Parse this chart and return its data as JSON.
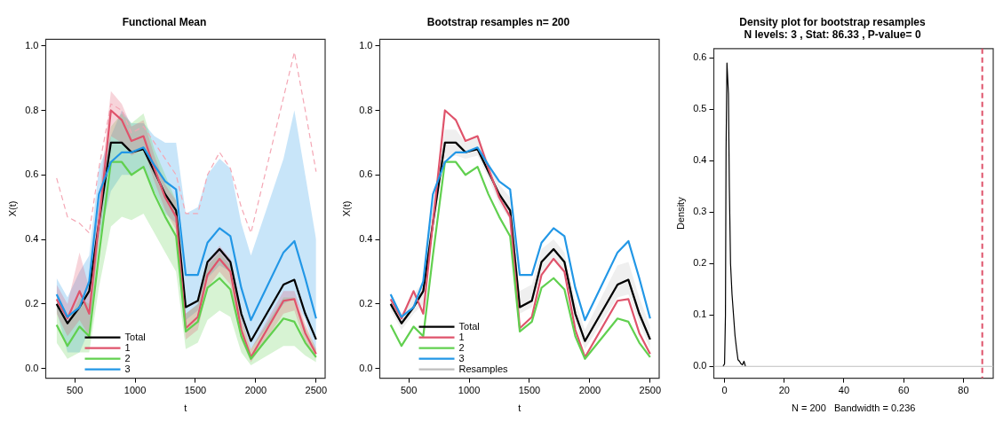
{
  "chart_data": [
    {
      "type": "line",
      "title": "Functional Mean",
      "xlabel": "t",
      "ylabel": "X(t)",
      "x": [
        350,
        440,
        540,
        620,
        700,
        800,
        890,
        970,
        1070,
        1160,
        1250,
        1340,
        1420,
        1520,
        1600,
        1700,
        1790,
        1880,
        1960,
        2230,
        2320,
        2410,
        2500
      ],
      "xlim": [
        260,
        2575
      ],
      "xticks": [
        500,
        1000,
        1500,
        2000,
        2500
      ],
      "ylim": [
        -0.03,
        1.02
      ],
      "yticks": [
        {
          "value": 0,
          "label": "0.0"
        },
        {
          "value": 0.2,
          "label": "0.2"
        },
        {
          "value": 0.4,
          "label": "0.4"
        },
        {
          "value": 0.6,
          "label": "0.6"
        },
        {
          "value": 0.8,
          "label": "0.8"
        },
        {
          "value": 1,
          "label": "1.0"
        }
      ],
      "grid": false,
      "legend": "bottom",
      "marker": "none",
      "line_style": "solid",
      "series": [
        {
          "color": "#f4a6b4",
          "line_style": "dashed",
          "values": [
            0.59,
            0.47,
            0.45,
            0.42,
            0.62,
            0.82,
            0.8,
            0.73,
            0.75,
            0.7,
            0.65,
            0.6,
            0.48,
            0.48,
            0.6,
            0.67,
            0.62,
            0.5,
            0.42,
            0.84,
            0.98,
            0.8,
            0.61
          ]
        },
        {
          "name": "Total",
          "color": "#000000",
          "values": [
            0.2,
            0.14,
            0.19,
            0.24,
            0.45,
            0.7,
            0.7,
            0.67,
            0.68,
            0.61,
            0.54,
            0.49,
            0.19,
            0.21,
            0.33,
            0.37,
            0.33,
            0.17,
            0.085,
            0.26,
            0.275,
            0.17,
            0.09
          ]
        },
        {
          "name": "1",
          "color": "#df536b",
          "values": [
            0.215,
            0.155,
            0.24,
            0.17,
            0.45,
            0.8,
            0.77,
            0.705,
            0.72,
            0.62,
            0.53,
            0.47,
            0.125,
            0.16,
            0.29,
            0.34,
            0.3,
            0.12,
            0.035,
            0.21,
            0.215,
            0.11,
            0.045
          ],
          "lower": [
            0.17,
            0.1,
            0.15,
            0.1,
            0.4,
            0.72,
            0.7,
            0.66,
            0.68,
            0.58,
            0.49,
            0.43,
            0.09,
            0.12,
            0.25,
            0.3,
            0.26,
            0.09,
            0.02,
            0.17,
            0.18,
            0.08,
            0.03
          ],
          "upper": [
            0.26,
            0.2,
            0.36,
            0.25,
            0.52,
            0.86,
            0.82,
            0.75,
            0.77,
            0.66,
            0.57,
            0.52,
            0.17,
            0.2,
            0.33,
            0.38,
            0.34,
            0.16,
            0.06,
            0.24,
            0.24,
            0.14,
            0.06
          ]
        },
        {
          "name": "2",
          "color": "#61d04f",
          "values": [
            0.135,
            0.07,
            0.13,
            0.1,
            0.35,
            0.64,
            0.64,
            0.6,
            0.625,
            0.54,
            0.47,
            0.41,
            0.115,
            0.145,
            0.25,
            0.28,
            0.245,
            0.1,
            0.03,
            0.155,
            0.145,
            0.08,
            0.035
          ],
          "lower": [
            0.08,
            0.03,
            0.05,
            0.05,
            0.25,
            0.44,
            0.47,
            0.46,
            0.48,
            0.42,
            0.36,
            0.3,
            0.06,
            0.08,
            0.15,
            0.18,
            0.16,
            0.05,
            0.01,
            0.07,
            0.07,
            0.04,
            0.02
          ],
          "upper": [
            0.2,
            0.14,
            0.22,
            0.2,
            0.45,
            0.75,
            0.79,
            0.76,
            0.79,
            0.68,
            0.6,
            0.52,
            0.17,
            0.2,
            0.32,
            0.36,
            0.32,
            0.15,
            0.06,
            0.22,
            0.22,
            0.13,
            0.06
          ]
        },
        {
          "name": "3",
          "color": "#2297e6",
          "values": [
            0.23,
            0.16,
            0.19,
            0.27,
            0.54,
            0.64,
            0.67,
            0.67,
            0.685,
            0.63,
            0.58,
            0.555,
            0.29,
            0.29,
            0.39,
            0.435,
            0.41,
            0.25,
            0.15,
            0.36,
            0.395,
            0.28,
            0.155
          ],
          "lower": [
            0.18,
            0.05,
            0.05,
            0.12,
            0.4,
            0.55,
            0.6,
            0.6,
            0.62,
            0.55,
            0.48,
            0.45,
            0.15,
            0.18,
            0.28,
            0.32,
            0.3,
            0.15,
            0.06,
            0.2,
            0.22,
            0.15,
            0.05
          ],
          "upper": [
            0.28,
            0.22,
            0.3,
            0.35,
            0.62,
            0.72,
            0.8,
            0.76,
            0.76,
            0.72,
            0.7,
            0.7,
            0.48,
            0.5,
            0.6,
            0.65,
            0.62,
            0.45,
            0.35,
            0.65,
            0.8,
            0.6,
            0.4
          ]
        }
      ]
    },
    {
      "type": "line",
      "title": "Bootstrap resamples n= 200",
      "xlabel": "t",
      "ylabel": "X(t)",
      "x": [
        350,
        440,
        540,
        620,
        700,
        800,
        890,
        970,
        1070,
        1160,
        1250,
        1340,
        1420,
        1520,
        1600,
        1700,
        1790,
        1880,
        1960,
        2230,
        2320,
        2410,
        2500
      ],
      "xlim": [
        260,
        2575
      ],
      "xticks": [
        500,
        1000,
        1500,
        2000,
        2500
      ],
      "ylim": [
        -0.03,
        1.02
      ],
      "yticks": [
        {
          "value": 0,
          "label": "0.0"
        },
        {
          "value": 0.2,
          "label": "0.2"
        },
        {
          "value": 0.4,
          "label": "0.4"
        },
        {
          "value": 0.6,
          "label": "0.6"
        },
        {
          "value": 0.8,
          "label": "0.8"
        },
        {
          "value": 1,
          "label": "1.0"
        }
      ],
      "grid": false,
      "legend": "bottom",
      "marker": "none",
      "line_style": "solid",
      "series": [
        {
          "name": "Resamples",
          "color": "#bebebe",
          "values": [
            0.2,
            0.14,
            0.19,
            0.24,
            0.45,
            0.7,
            0.7,
            0.67,
            0.68,
            0.61,
            0.54,
            0.49,
            0.19,
            0.21,
            0.33,
            0.37,
            0.33,
            0.17,
            0.085,
            0.26,
            0.275,
            0.17,
            0.09
          ],
          "lower": [
            0.18,
            0.12,
            0.17,
            0.2,
            0.42,
            0.65,
            0.66,
            0.65,
            0.66,
            0.59,
            0.51,
            0.46,
            0.17,
            0.19,
            0.3,
            0.34,
            0.3,
            0.14,
            0.06,
            0.22,
            0.23,
            0.14,
            0.06
          ],
          "upper": [
            0.22,
            0.17,
            0.23,
            0.27,
            0.5,
            0.74,
            0.74,
            0.7,
            0.72,
            0.64,
            0.57,
            0.53,
            0.24,
            0.26,
            0.37,
            0.4,
            0.36,
            0.21,
            0.12,
            0.32,
            0.33,
            0.22,
            0.13
          ]
        },
        {
          "name": "Total",
          "color": "#000000",
          "values": [
            0.2,
            0.14,
            0.19,
            0.24,
            0.45,
            0.7,
            0.7,
            0.67,
            0.68,
            0.61,
            0.54,
            0.49,
            0.19,
            0.21,
            0.33,
            0.37,
            0.33,
            0.17,
            0.085,
            0.26,
            0.275,
            0.17,
            0.09
          ]
        },
        {
          "name": "1",
          "color": "#df536b",
          "values": [
            0.215,
            0.155,
            0.24,
            0.17,
            0.45,
            0.8,
            0.77,
            0.705,
            0.72,
            0.62,
            0.53,
            0.47,
            0.125,
            0.16,
            0.29,
            0.34,
            0.3,
            0.12,
            0.035,
            0.21,
            0.215,
            0.11,
            0.045
          ]
        },
        {
          "name": "2",
          "color": "#61d04f",
          "values": [
            0.135,
            0.07,
            0.13,
            0.1,
            0.35,
            0.64,
            0.64,
            0.6,
            0.625,
            0.54,
            0.47,
            0.41,
            0.115,
            0.145,
            0.25,
            0.28,
            0.245,
            0.1,
            0.03,
            0.155,
            0.145,
            0.08,
            0.035
          ]
        },
        {
          "name": "3",
          "color": "#2297e6",
          "values": [
            0.23,
            0.16,
            0.19,
            0.27,
            0.54,
            0.64,
            0.67,
            0.67,
            0.685,
            0.63,
            0.58,
            0.555,
            0.29,
            0.29,
            0.39,
            0.435,
            0.41,
            0.25,
            0.15,
            0.36,
            0.395,
            0.28,
            0.155
          ]
        }
      ]
    },
    {
      "type": "line",
      "title": "Density plot for bootstrap resamples",
      "subtitle": "N levels: 3 , Stat: 86.33 , P-value= 0",
      "xlabel": "N = 200   Bandwidth = 0.236",
      "ylabel": "Density",
      "xlim": [
        -3.6,
        90
      ],
      "xticks": [
        0,
        20,
        40,
        60,
        80
      ],
      "ylim": [
        -0.023,
        0.618
      ],
      "yticks": [
        {
          "value": 0,
          "label": "0.0"
        },
        0.1,
        0.2,
        0.3,
        0.4,
        0.5,
        0.6
      ],
      "grid": false,
      "marker": "none",
      "line_style": "solid",
      "ref_lines": [
        {
          "axis": "x",
          "value": 86.33,
          "color": "#df536b",
          "line_style": "dashed"
        },
        {
          "axis": "y",
          "value": 0,
          "color": "#bebebe",
          "line_style": "solid"
        }
      ],
      "series": [
        {
          "color": "#000000",
          "x": [
            -0.5,
            0,
            0.3,
            0.5,
            0.8,
            1,
            1.3,
            1.6,
            2,
            2.5,
            3,
            3.5,
            4,
            4.5,
            5,
            5.5,
            6,
            6.5,
            7
          ],
          "values": [
            0,
            0.005,
            0.1,
            0.42,
            0.59,
            0.59,
            0.53,
            0.35,
            0.2,
            0.14,
            0.1,
            0.06,
            0.035,
            0.013,
            0.01,
            0.005,
            0.003,
            0.01,
            0
          ]
        }
      ]
    }
  ]
}
